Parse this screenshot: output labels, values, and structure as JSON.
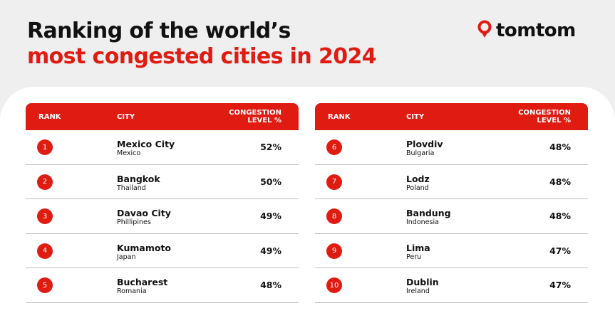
{
  "title": {
    "line1": "Ranking of the world’s",
    "line2": "most congested cities in 2024"
  },
  "logo": {
    "text": "tomtom",
    "icon": "location-pin-icon",
    "icon_color": "#df1b12"
  },
  "colors": {
    "accent": "#df1b12",
    "background": "#efefef",
    "panel": "#ffffff",
    "text": "#111111"
  },
  "table_headers": {
    "rank": "RANK",
    "city": "CITY",
    "level_line1": "CONGESTION",
    "level_line2": "LEVEL %"
  },
  "left_table": {
    "rows": [
      {
        "rank": "1",
        "city": "Mexico City",
        "country": "Mexico",
        "level": "52%"
      },
      {
        "rank": "2",
        "city": "Bangkok",
        "country": "Thailand",
        "level": "50%"
      },
      {
        "rank": "3",
        "city": "Davao City",
        "country": "Phillipines",
        "level": "49%"
      },
      {
        "rank": "4",
        "city": "Kumamoto",
        "country": "Japan",
        "level": "49%"
      },
      {
        "rank": "5",
        "city": "Bucharest",
        "country": "Romania",
        "level": "48%"
      }
    ]
  },
  "right_table": {
    "rows": [
      {
        "rank": "6",
        "city": "Plovdiv",
        "country": "Bulgaria",
        "level": "48%"
      },
      {
        "rank": "7",
        "city": "Lodz",
        "country": "Poland",
        "level": "48%"
      },
      {
        "rank": "8",
        "city": "Bandung",
        "country": "Indonesia",
        "level": "48%"
      },
      {
        "rank": "9",
        "city": "Lima",
        "country": "Peru",
        "level": "47%"
      },
      {
        "rank": "10",
        "city": "Dublin",
        "country": "Ireland",
        "level": "47%"
      }
    ]
  }
}
